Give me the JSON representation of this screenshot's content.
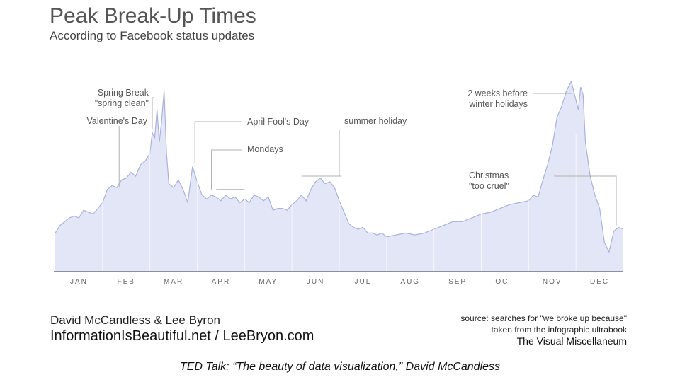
{
  "header": {
    "title": "Peak Break-Up Times",
    "subtitle": "According to Facebook status updates"
  },
  "footer": {
    "credit": "David McCandless & Lee Byron",
    "site": "InformationIsBeautiful.net / LeeBryon.com",
    "source_line1": "source: searches for \"we broke up because\"",
    "source_line2": "taken from the infographic ultrabook",
    "source_line3": "The Visual Miscellaneum"
  },
  "caption": "TED Talk: “The beauty of data visualization,” David McCandless",
  "colors": {
    "fill": "#e3e6f6",
    "line": "#aab2db",
    "axis": "#8d8f99",
    "text": "#555555"
  },
  "chart_data": {
    "type": "area",
    "title": "Peak Break-Up Times",
    "subtitle": "According to Facebook status updates",
    "xlabel": "",
    "ylabel": "",
    "grid": "vertical month dividers only",
    "categories": [
      "JAN",
      "FEB",
      "MAR",
      "APR",
      "MAY",
      "JUN",
      "JUL",
      "AUG",
      "SEP",
      "OCT",
      "NOV",
      "DEC"
    ],
    "xlim": [
      0,
      12
    ],
    "ylim": [
      0,
      100
    ],
    "series": [
      {
        "x": [
          0,
          0.1,
          0.2,
          0.3,
          0.4,
          0.5,
          0.6,
          0.7,
          0.8,
          0.9,
          1.0,
          1.1,
          1.2,
          1.3,
          1.4,
          1.5,
          1.6,
          1.7,
          1.8,
          1.9,
          2.0,
          2.05,
          2.1,
          2.15,
          2.2,
          2.25,
          2.3,
          2.35,
          2.4,
          2.5,
          2.6,
          2.7,
          2.8,
          2.9,
          3.0,
          3.1,
          3.2,
          3.3,
          3.4,
          3.5,
          3.6,
          3.7,
          3.8,
          3.9,
          4.0,
          4.1,
          4.2,
          4.3,
          4.4,
          4.5,
          4.6,
          4.7,
          4.8,
          4.9,
          5.0,
          5.1,
          5.2,
          5.3,
          5.4,
          5.5,
          5.6,
          5.7,
          5.8,
          5.9,
          6.0,
          6.1,
          6.2,
          6.3,
          6.4,
          6.5,
          6.6,
          6.7,
          6.8,
          6.9,
          7.0,
          7.2,
          7.4,
          7.6,
          7.8,
          8.0,
          8.2,
          8.4,
          8.6,
          8.8,
          9.0,
          9.2,
          9.4,
          9.6,
          9.8,
          10.0,
          10.1,
          10.2,
          10.3,
          10.4,
          10.5,
          10.6,
          10.7,
          10.8,
          10.9,
          11.0,
          11.05,
          11.1,
          11.15,
          11.2,
          11.3,
          11.4,
          11.5,
          11.6,
          11.7,
          11.8,
          11.9,
          12.0
        ],
        "values": [
          20,
          24,
          26,
          28,
          29,
          28,
          32,
          31,
          30,
          33,
          36,
          43,
          45,
          44,
          48,
          49,
          52,
          50,
          56,
          58,
          62,
          73,
          70,
          85,
          68,
          80,
          95,
          62,
          46,
          44,
          48,
          43,
          36,
          55,
          47,
          40,
          38,
          40,
          39,
          37,
          40,
          38,
          39,
          36,
          38,
          36,
          40,
          39,
          37,
          39,
          32,
          33,
          33,
          32,
          35,
          37,
          40,
          37,
          43,
          47,
          49,
          46,
          47,
          44,
          37,
          31,
          25,
          23,
          22,
          23,
          20,
          20,
          19,
          20,
          18,
          19,
          20,
          19,
          20,
          22,
          24,
          26,
          26,
          28,
          30,
          31,
          33,
          35,
          36,
          37,
          40,
          39,
          48,
          56,
          66,
          81,
          87,
          95,
          100,
          90,
          85,
          97,
          93,
          68,
          50,
          40,
          33,
          15,
          10,
          21,
          23,
          22
        ]
      }
    ],
    "annotations": [
      "Valentine's Day",
      "Spring Break \"spring clean\"",
      "Mondays",
      "April Fool's Day",
      "summer holiday",
      "Christmas \"too cruel\"",
      "2 weeks before winter holidays"
    ]
  }
}
